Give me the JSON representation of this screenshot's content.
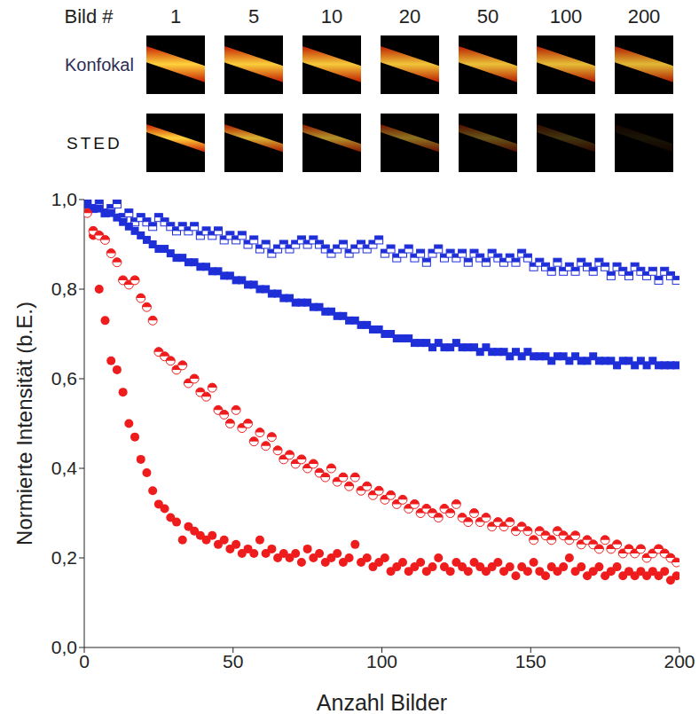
{
  "image_panel": {
    "header": "Bild #",
    "frames": [
      1,
      5,
      10,
      20,
      50,
      100,
      200
    ],
    "rows": [
      "Konfokal",
      "STED"
    ]
  },
  "chart_data": {
    "type": "scatter",
    "xlabel": "Anzahl Bilder",
    "ylabel": "Normierte Intensität (b.E.)",
    "xlim": [
      0,
      200
    ],
    "xticks": [
      0,
      50,
      100,
      150,
      200
    ],
    "ylim": [
      0,
      1
    ],
    "yticks": [
      {
        "value": 0,
        "label": "0,0"
      },
      {
        "value": 0.2,
        "label": "0,2"
      },
      {
        "value": 0.4,
        "label": "0,4"
      },
      {
        "value": 0.6,
        "label": "0,6"
      },
      {
        "value": 0.8,
        "label": "0,8"
      },
      {
        "value": 1,
        "label": "1,0"
      }
    ],
    "grid": false,
    "x": [
      1,
      3,
      5,
      7,
      9,
      11,
      13,
      15,
      17,
      19,
      21,
      23,
      25,
      27,
      29,
      31,
      33,
      35,
      37,
      39,
      41,
      43,
      45,
      47,
      49,
      51,
      53,
      55,
      57,
      59,
      61,
      63,
      65,
      67,
      69,
      71,
      73,
      75,
      77,
      79,
      81,
      83,
      85,
      87,
      89,
      91,
      93,
      95,
      97,
      99,
      101,
      103,
      105,
      107,
      109,
      111,
      113,
      115,
      117,
      119,
      121,
      123,
      125,
      127,
      129,
      131,
      133,
      135,
      137,
      139,
      141,
      143,
      145,
      147,
      149,
      151,
      153,
      155,
      157,
      159,
      161,
      163,
      165,
      167,
      169,
      171,
      173,
      175,
      177,
      179,
      181,
      183,
      185,
      187,
      189,
      191,
      193,
      195,
      197,
      199
    ],
    "series": [
      {
        "color": "#1f2fd8",
        "marker": "half_square",
        "values": [
          0.99,
          0.98,
          0.99,
          0.97,
          0.98,
          0.99,
          0.96,
          0.97,
          0.95,
          0.96,
          0.95,
          0.94,
          0.96,
          0.95,
          0.94,
          0.93,
          0.94,
          0.93,
          0.94,
          0.92,
          0.93,
          0.92,
          0.93,
          0.91,
          0.92,
          0.91,
          0.92,
          0.9,
          0.91,
          0.89,
          0.9,
          0.88,
          0.89,
          0.9,
          0.89,
          0.9,
          0.91,
          0.9,
          0.91,
          0.9,
          0.89,
          0.88,
          0.89,
          0.9,
          0.88,
          0.89,
          0.9,
          0.89,
          0.9,
          0.91,
          0.88,
          0.89,
          0.87,
          0.88,
          0.89,
          0.87,
          0.88,
          0.86,
          0.88,
          0.89,
          0.87,
          0.88,
          0.87,
          0.88,
          0.86,
          0.88,
          0.87,
          0.86,
          0.88,
          0.87,
          0.86,
          0.87,
          0.86,
          0.88,
          0.87,
          0.85,
          0.86,
          0.85,
          0.84,
          0.86,
          0.84,
          0.85,
          0.84,
          0.86,
          0.85,
          0.84,
          0.86,
          0.85,
          0.83,
          0.85,
          0.84,
          0.83,
          0.85,
          0.84,
          0.83,
          0.84,
          0.82,
          0.84,
          0.83,
          0.82
        ]
      },
      {
        "color": "#1f2fd8",
        "marker": "square",
        "values": [
          0.99,
          0.98,
          0.98,
          0.97,
          0.97,
          0.96,
          0.95,
          0.94,
          0.93,
          0.92,
          0.91,
          0.9,
          0.89,
          0.89,
          0.88,
          0.87,
          0.87,
          0.86,
          0.86,
          0.85,
          0.85,
          0.84,
          0.84,
          0.83,
          0.83,
          0.82,
          0.82,
          0.81,
          0.81,
          0.8,
          0.8,
          0.79,
          0.79,
          0.78,
          0.78,
          0.77,
          0.77,
          0.77,
          0.76,
          0.76,
          0.75,
          0.75,
          0.74,
          0.74,
          0.73,
          0.73,
          0.72,
          0.72,
          0.71,
          0.71,
          0.7,
          0.7,
          0.69,
          0.69,
          0.69,
          0.68,
          0.68,
          0.68,
          0.67,
          0.68,
          0.67,
          0.67,
          0.68,
          0.67,
          0.67,
          0.67,
          0.66,
          0.67,
          0.66,
          0.66,
          0.66,
          0.65,
          0.66,
          0.65,
          0.66,
          0.65,
          0.65,
          0.65,
          0.64,
          0.65,
          0.65,
          0.64,
          0.65,
          0.64,
          0.64,
          0.65,
          0.64,
          0.64,
          0.64,
          0.63,
          0.64,
          0.64,
          0.63,
          0.64,
          0.63,
          0.64,
          0.63,
          0.63,
          0.63,
          0.63
        ]
      },
      {
        "color": "#ee1c1c",
        "marker": "circle",
        "values": [
          0.97,
          0.92,
          0.8,
          0.73,
          0.64,
          0.62,
          0.57,
          0.5,
          0.47,
          0.42,
          0.39,
          0.35,
          0.32,
          0.31,
          0.29,
          0.28,
          0.24,
          0.27,
          0.26,
          0.25,
          0.24,
          0.25,
          0.23,
          0.24,
          0.22,
          0.23,
          0.21,
          0.22,
          0.21,
          0.24,
          0.21,
          0.22,
          0.2,
          0.21,
          0.2,
          0.21,
          0.19,
          0.22,
          0.2,
          0.21,
          0.19,
          0.2,
          0.21,
          0.19,
          0.2,
          0.23,
          0.19,
          0.2,
          0.18,
          0.19,
          0.2,
          0.17,
          0.18,
          0.19,
          0.17,
          0.18,
          0.19,
          0.17,
          0.18,
          0.2,
          0.18,
          0.17,
          0.19,
          0.18,
          0.17,
          0.19,
          0.18,
          0.17,
          0.18,
          0.19,
          0.17,
          0.18,
          0.16,
          0.18,
          0.17,
          0.19,
          0.17,
          0.16,
          0.18,
          0.17,
          0.18,
          0.2,
          0.17,
          0.18,
          0.16,
          0.17,
          0.18,
          0.16,
          0.17,
          0.18,
          0.16,
          0.17,
          0.16,
          0.17,
          0.16,
          0.17,
          0.16,
          0.17,
          0.15,
          0.16
        ]
      },
      {
        "color": "#ee1c1c",
        "marker": "half_circle",
        "values": [
          0.97,
          0.93,
          0.92,
          0.91,
          0.88,
          0.86,
          0.82,
          0.81,
          0.82,
          0.78,
          0.76,
          0.73,
          0.66,
          0.65,
          0.64,
          0.62,
          0.63,
          0.59,
          0.6,
          0.57,
          0.56,
          0.58,
          0.53,
          0.52,
          0.5,
          0.53,
          0.49,
          0.5,
          0.46,
          0.48,
          0.45,
          0.47,
          0.44,
          0.42,
          0.43,
          0.41,
          0.42,
          0.4,
          0.41,
          0.39,
          0.38,
          0.4,
          0.37,
          0.38,
          0.36,
          0.38,
          0.35,
          0.36,
          0.34,
          0.35,
          0.33,
          0.34,
          0.32,
          0.33,
          0.31,
          0.32,
          0.3,
          0.31,
          0.3,
          0.29,
          0.31,
          0.3,
          0.32,
          0.29,
          0.28,
          0.3,
          0.28,
          0.29,
          0.27,
          0.28,
          0.27,
          0.28,
          0.26,
          0.27,
          0.26,
          0.24,
          0.26,
          0.25,
          0.24,
          0.26,
          0.25,
          0.24,
          0.25,
          0.23,
          0.24,
          0.23,
          0.22,
          0.24,
          0.22,
          0.23,
          0.21,
          0.22,
          0.21,
          0.22,
          0.2,
          0.21,
          0.22,
          0.21,
          0.2,
          0.19
        ]
      }
    ]
  }
}
